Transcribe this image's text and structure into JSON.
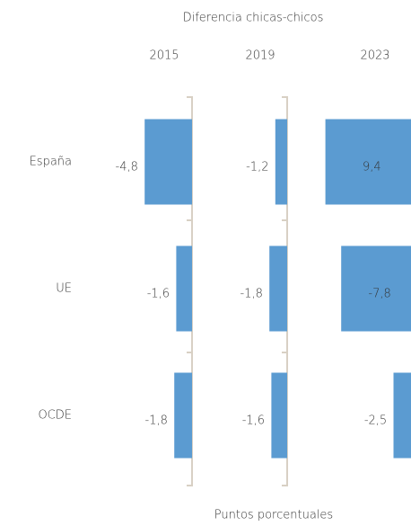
{
  "chart_data": {
    "type": "bar",
    "orientation": "horizontal",
    "title": "Diferencia chicas-chicos",
    "x_label": "Puntos porcentuales",
    "categories": [
      "España",
      "UE",
      "OCDE"
    ],
    "series": [
      {
        "name": "2015",
        "color": "#5b9bd1",
        "values": [
          -4.8,
          -1.6,
          -1.8
        ],
        "value_labels": [
          "-4,8",
          "-1,6",
          "-1,8"
        ]
      },
      {
        "name": "2019",
        "color": "#5b9bd1",
        "values": [
          -1.2,
          -1.8,
          -1.6
        ],
        "value_labels": [
          "-1,2",
          "-1,8",
          "-1,6"
        ]
      },
      {
        "name": "2023",
        "color": "#5b9bd1",
        "values": [
          9.4,
          -7.8,
          -2.5
        ],
        "value_labels": [
          "9,4",
          "-7,8",
          "-2,5"
        ]
      }
    ]
  }
}
